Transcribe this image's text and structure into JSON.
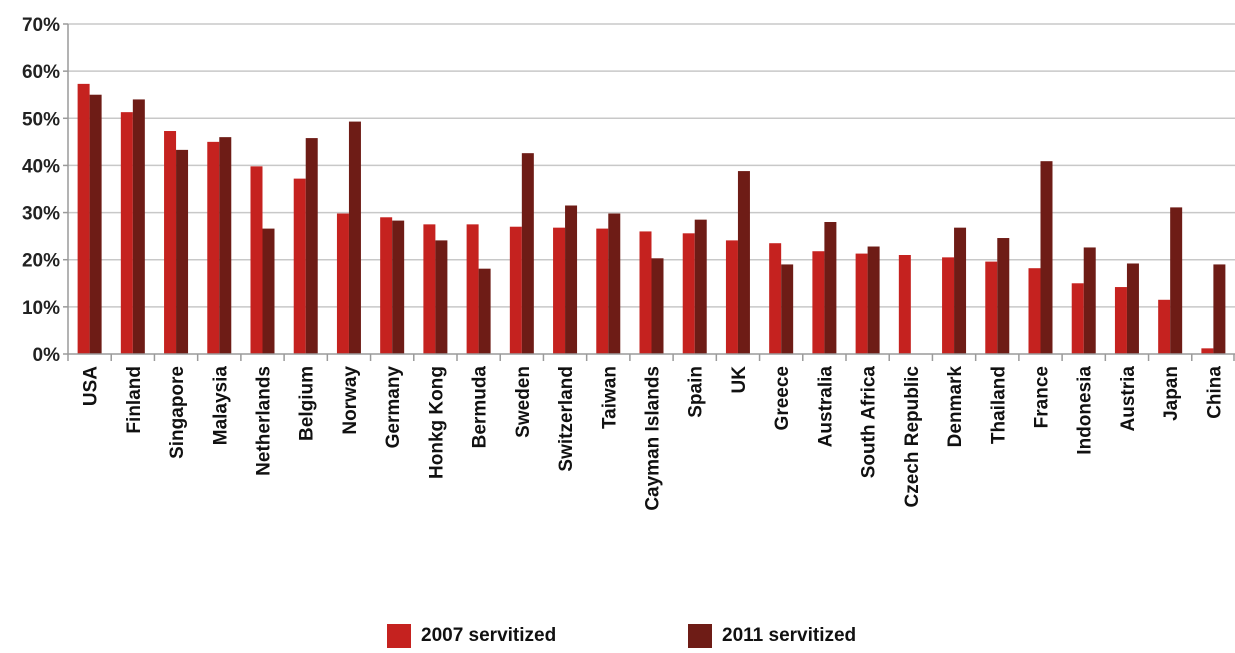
{
  "chart_data": {
    "type": "bar",
    "title": "",
    "xlabel": "",
    "ylabel": "",
    "ylim": [
      0,
      70
    ],
    "yticks": [
      "0%",
      "10%",
      "20%",
      "30%",
      "40%",
      "50%",
      "60%",
      "70%"
    ],
    "grid": true,
    "legend_position": "bottom",
    "categories": [
      "USA",
      "Finland",
      "Singapore",
      "Malaysia",
      "Netherlands",
      "Belgium",
      "Norway",
      "Germany",
      "Honkg Kong",
      "Bermuda",
      "Sweden",
      "Switzerland",
      "Taiwan",
      "Cayman Islands",
      "Spain",
      "UK",
      "Greece",
      "Australia",
      "South Africa",
      "Czech Republic",
      "Denmark",
      "Thailand",
      "France",
      "Indonesia",
      "Austria",
      "Japan",
      "China"
    ],
    "series": [
      {
        "name": "2007 servitized",
        "color": "#c5221f",
        "values": [
          57.3,
          51.3,
          47.3,
          45.0,
          39.8,
          37.2,
          29.8,
          29.0,
          27.5,
          27.5,
          27.0,
          26.8,
          26.6,
          26.0,
          25.6,
          24.1,
          23.5,
          21.8,
          21.3,
          21.0,
          20.5,
          19.6,
          18.2,
          15.0,
          14.2,
          11.5,
          1.2
        ]
      },
      {
        "name": "2011 servitized",
        "color": "#6e1c16",
        "values": [
          55.0,
          54.0,
          43.3,
          46.0,
          26.6,
          45.8,
          49.3,
          28.3,
          24.1,
          18.1,
          42.6,
          31.5,
          29.8,
          20.3,
          28.5,
          38.8,
          19.0,
          28.0,
          22.8,
          0,
          26.8,
          24.6,
          40.9,
          22.6,
          19.2,
          31.1,
          19.0
        ]
      }
    ]
  }
}
